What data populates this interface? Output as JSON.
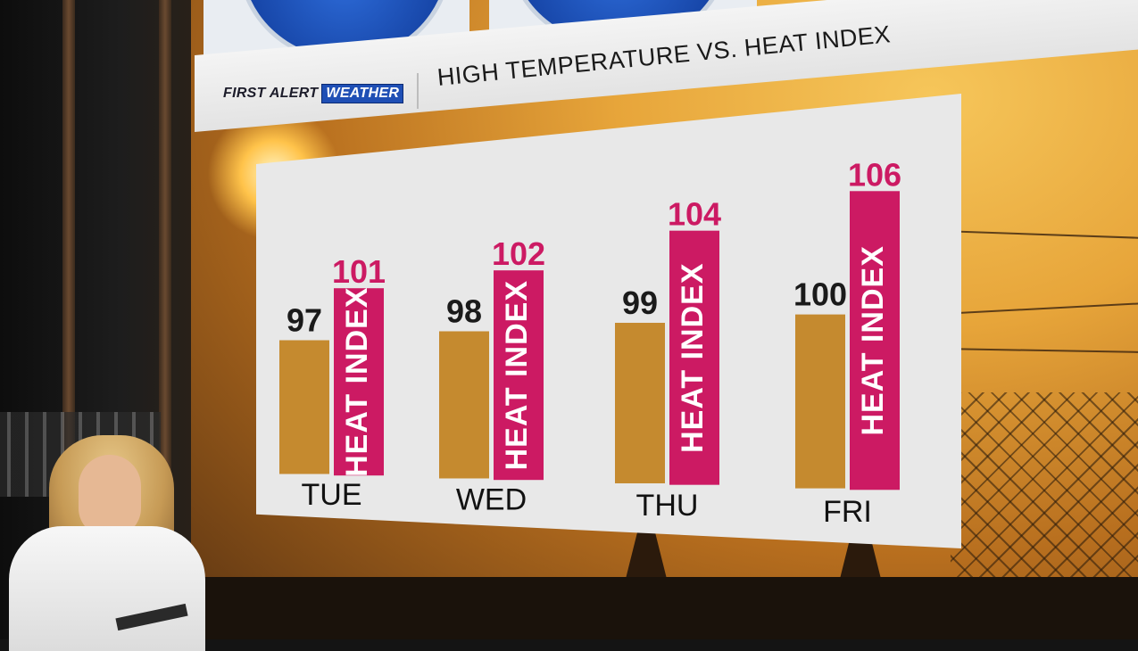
{
  "header": {
    "brand_first": "FIRST",
    "brand_alert": "ALERT",
    "brand_weather": "WEATHER",
    "title": "HIGH TEMPERATURE VS. HEAT INDEX"
  },
  "colors": {
    "temp_bar": "#c58a2f",
    "heat_bar": "#cc1a63",
    "heat_value_text": "#cc1a63",
    "temp_value_text": "#1a1a1a",
    "panel": "#e8e8e8",
    "brand_blue": "#1f4fb5"
  },
  "chart_data": {
    "type": "bar",
    "title": "HIGH TEMPERATURE VS. HEAT INDEX",
    "categories": [
      "TUE",
      "WED",
      "THU",
      "FRI"
    ],
    "series": [
      {
        "name": "",
        "values": [
          97,
          98,
          99,
          100
        ],
        "color": "#c58a2f"
      },
      {
        "name": "HEAT INDEX",
        "values": [
          101,
          102,
          104,
          106
        ],
        "color": "#cc1a63"
      }
    ],
    "bar_text": "HEAT INDEX",
    "grid": false,
    "legend": "none"
  }
}
